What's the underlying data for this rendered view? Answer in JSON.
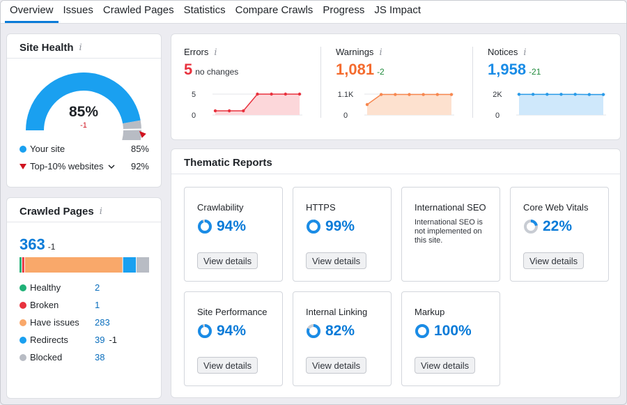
{
  "tabs": [
    "Overview",
    "Issues",
    "Crawled Pages",
    "Statistics",
    "Compare Crawls",
    "Progress",
    "JS Impact"
  ],
  "colors": {
    "accent": "#0a7bd8",
    "error": "#e8323e",
    "warning": "#f46b2e",
    "notice": "#1a8ce6",
    "healthy": "#1fb177",
    "broken": "#e8323e",
    "have_issues": "#f9a86a",
    "redirects": "#1aa0f0",
    "blocked": "#b8bcc4"
  },
  "site_health": {
    "title": "Site Health",
    "percent": 85,
    "percent_label": "85%",
    "delta": "-1",
    "your_site_label": "Your site",
    "your_site_value": "85%",
    "top_label": "Top-10% websites",
    "top_value": "92%",
    "top_percent": 92
  },
  "crawled_pages": {
    "title": "Crawled Pages",
    "total": "363",
    "total_delta": "-1",
    "segments": [
      {
        "name": "Healthy",
        "value": 2,
        "color": "#1fb177"
      },
      {
        "name": "Broken",
        "value": 1,
        "color": "#e8323e"
      },
      {
        "name": "Have issues",
        "value": 283,
        "color": "#f9a86a"
      },
      {
        "name": "Redirects",
        "value": 39,
        "color": "#1aa0f0"
      },
      {
        "name": "Blocked",
        "value": 38,
        "color": "#b8bcc4"
      }
    ],
    "rows": [
      {
        "label": "Healthy",
        "count": "2",
        "delta": ""
      },
      {
        "label": "Broken",
        "count": "1",
        "delta": ""
      },
      {
        "label": "Have issues",
        "count": "283",
        "delta": ""
      },
      {
        "label": "Redirects",
        "count": "39",
        "delta": "-1"
      },
      {
        "label": "Blocked",
        "count": "38",
        "delta": ""
      }
    ]
  },
  "stats": {
    "errors": {
      "label": "Errors",
      "value": "5",
      "delta": "no changes",
      "y_top": "5",
      "y_bottom": "0",
      "ymax": 5,
      "points": [
        1,
        1,
        1,
        5,
        5,
        5,
        5
      ]
    },
    "warnings": {
      "label": "Warnings",
      "value": "1,081",
      "delta": "-2",
      "y_top": "1.1K",
      "y_bottom": "0",
      "ymax": 1100,
      "points": [
        550,
        1081,
        1081,
        1081,
        1081,
        1081,
        1081
      ]
    },
    "notices": {
      "label": "Notices",
      "value": "1,958",
      "delta": "-21",
      "y_top": "2K",
      "y_bottom": "0",
      "ymax": 2000,
      "points": [
        1979,
        1979,
        1979,
        1979,
        1979,
        1960,
        1958
      ]
    }
  },
  "thematic": {
    "title": "Thematic Reports",
    "button_label": "View details",
    "cards": [
      {
        "name": "Crawlability",
        "pct": "94%",
        "value": 94
      },
      {
        "name": "HTTPS",
        "pct": "99%",
        "value": 99
      },
      {
        "name": "International SEO",
        "note": "International SEO is not implemented on this site."
      },
      {
        "name": "Core Web Vitals",
        "pct": "22%",
        "value": 22
      },
      {
        "name": "Site Performance",
        "pct": "94%",
        "value": 94
      },
      {
        "name": "Internal Linking",
        "pct": "82%",
        "value": 82
      },
      {
        "name": "Markup",
        "pct": "100%",
        "value": 100
      }
    ]
  }
}
